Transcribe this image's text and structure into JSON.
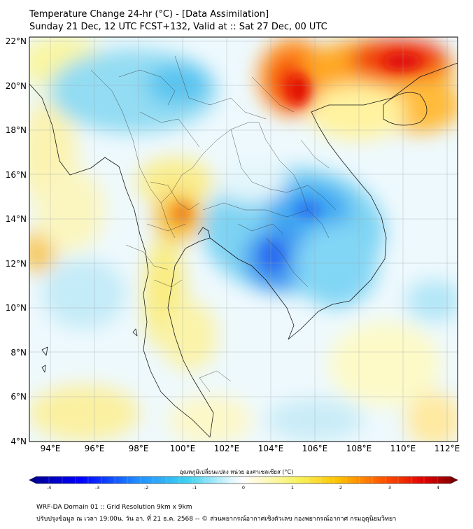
{
  "title": {
    "line1": "Temperature Change 24-hr (°C) - [Data Assimilation]",
    "line2": "Sunday 21 Dec, 12 UTC FCST+132, Valid at :: Sat 27 Dec, 00 UTC"
  },
  "map": {
    "lat_labels": [
      "4°N",
      "6°N",
      "8°N",
      "10°N",
      "12°N",
      "14°N",
      "16°N",
      "18°N",
      "20°N",
      "22°N"
    ],
    "lat_values": [
      4,
      6,
      8,
      10,
      12,
      14,
      16,
      18,
      20,
      22
    ],
    "lon_labels": [
      "94°E",
      "96°E",
      "98°E",
      "100°E",
      "102°E",
      "104°E",
      "106°E",
      "108°E",
      "110°E",
      "112°E"
    ],
    "lon_values": [
      94,
      96,
      98,
      100,
      102,
      104,
      106,
      108,
      110,
      112
    ],
    "lon_range": [
      93,
      112.5
    ],
    "lat_range": [
      4,
      22.3
    ]
  },
  "colorbar": {
    "label": "อุณหภูมิเปลี่ยนแปลง หน่วย องศาเซลเซียส (°C)",
    "ticks": [
      "-4",
      "-3",
      "-2",
      "-1",
      "0",
      "1",
      "2",
      "3",
      "4"
    ],
    "tick_values": [
      -4,
      -3,
      -2,
      -1,
      0,
      1,
      2,
      3,
      4
    ],
    "range": [
      -4,
      4
    ]
  },
  "footer": {
    "line1": "WRF-DA Domain 01 :: Grid Resolution 9km x 9km",
    "line2": "ปรับปรุงข้อมูล ณ เวลา 19:00น. วัน อา. ที่ 21 ธ.ค. 2568 -- © ส่วนพยากรณ์อากาศเชิงตัวเลข กองพยากรณ์อากาศ กรมอุตุนิยมวิทยา"
  }
}
